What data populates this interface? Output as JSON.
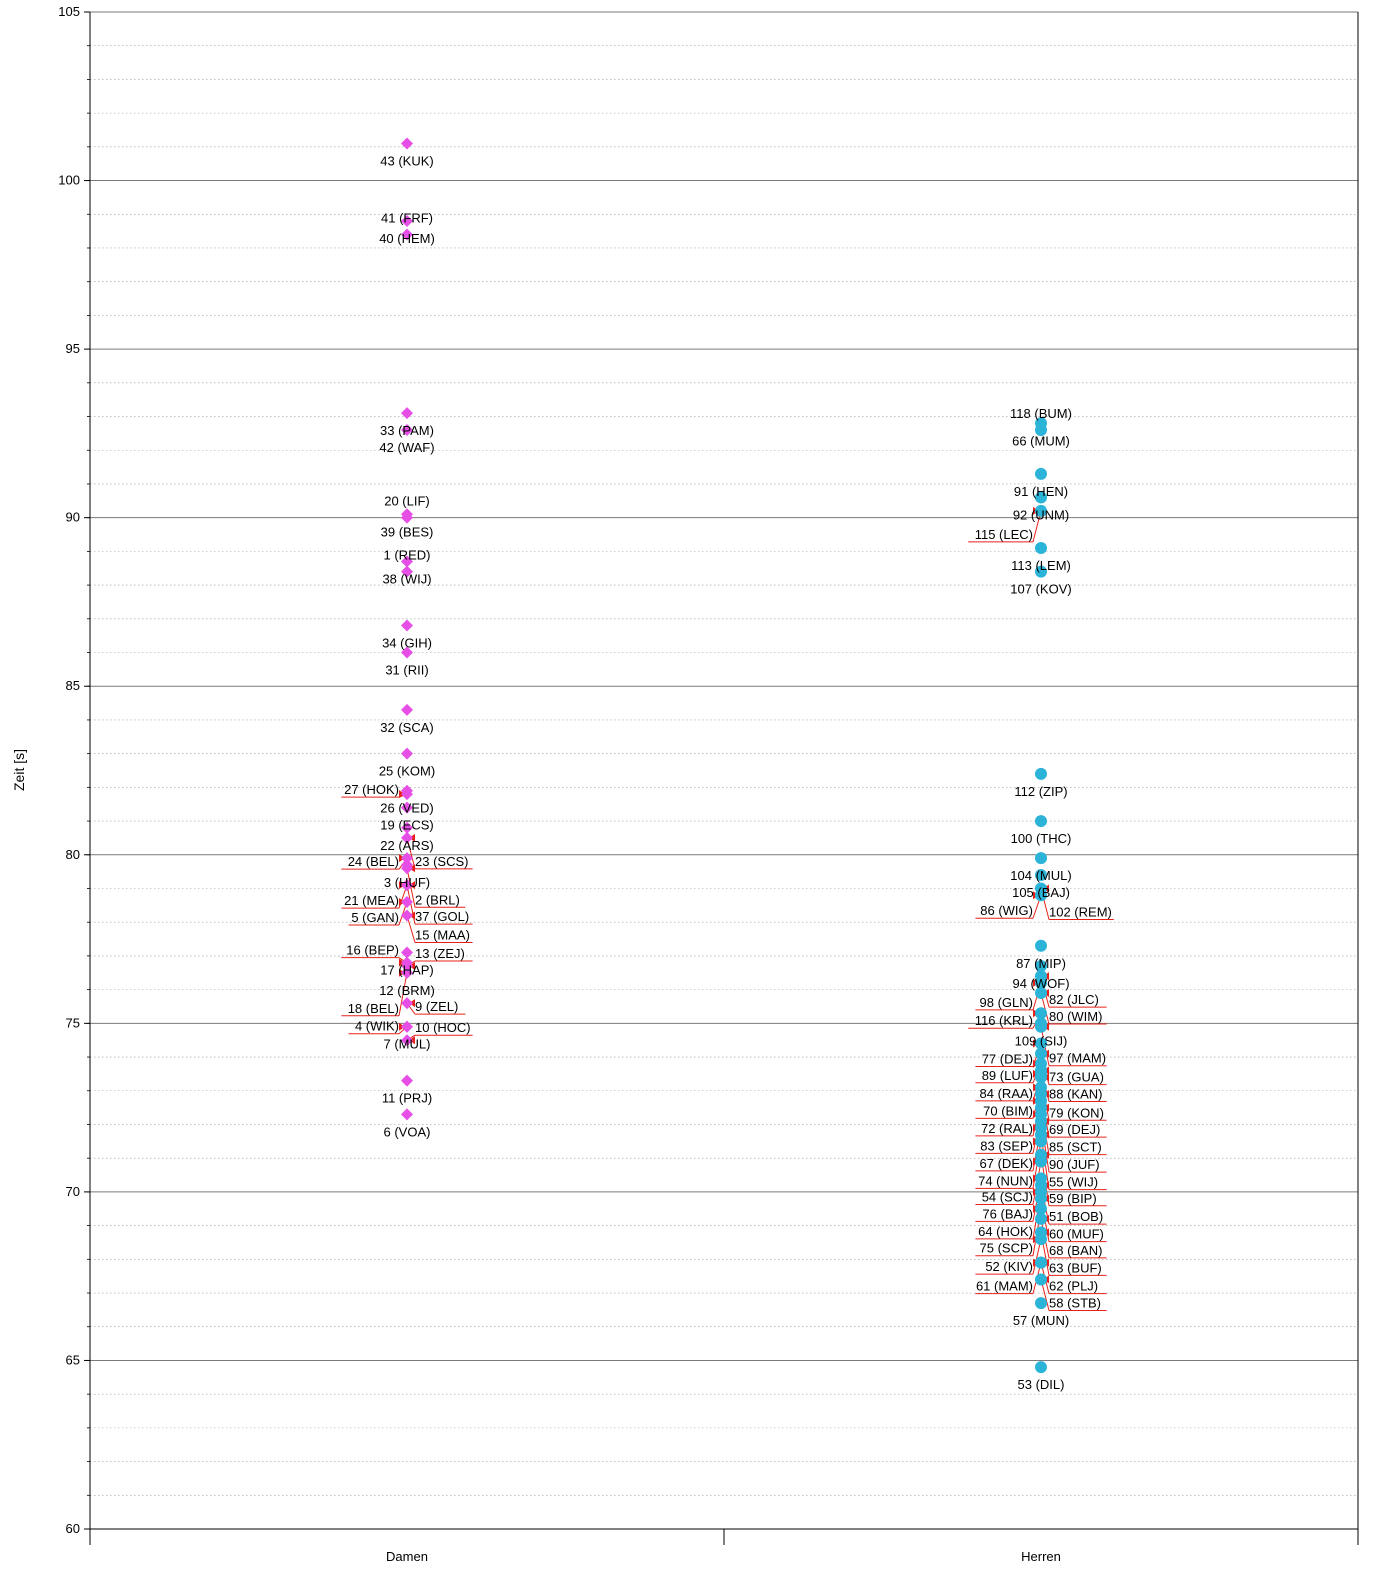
{
  "chart_data": {
    "type": "scatter",
    "ylabel": "Zeit [s]",
    "xlabel": "",
    "ylim": [
      60,
      105
    ],
    "y_major_ticks": [
      60,
      65,
      70,
      75,
      80,
      85,
      90,
      95,
      100,
      105
    ],
    "y_minor_step": 1,
    "grid": "major solid, minor dotted",
    "categories": [
      "Damen",
      "Herren"
    ],
    "series": [
      {
        "category": "Damen",
        "marker": "diamond",
        "color": "#e64fe6",
        "points": [
          {
            "label": "43 (KUK)",
            "y": 101.1
          },
          {
            "label": "40 (HEM)",
            "y": 98.8
          },
          {
            "label": "41 (FRF)",
            "y": 98.4
          },
          {
            "label": "33 (PAM)",
            "y": 93.1
          },
          {
            "label": "42 (WAF)",
            "y": 92.6
          },
          {
            "label": "39 (BES)",
            "y": 90.1
          },
          {
            "label": "20 (LIF)",
            "y": 90.0
          },
          {
            "label": "38 (WIJ)",
            "y": 88.7
          },
          {
            "label": "1 (RED)",
            "y": 88.4
          },
          {
            "label": "34 (GIH)",
            "y": 86.8
          },
          {
            "label": "31 (RII)",
            "y": 86.0
          },
          {
            "label": "32 (SCA)",
            "y": 84.3
          },
          {
            "label": "25 (KOM)",
            "y": 83.0
          },
          {
            "label": "26 (VED)",
            "y": 81.9
          },
          {
            "label": "27 (HOK)",
            "y": 81.8
          },
          {
            "label": "19 (ECS)",
            "y": 81.4
          },
          {
            "label": "22 (ARS)",
            "y": 80.8
          },
          {
            "label": "23 (SCS)",
            "y": 80.5
          },
          {
            "label": "24 (BEL)",
            "y": 79.9
          },
          {
            "label": "3 (HUF)",
            "y": 79.7
          },
          {
            "label": "2 (BRL)",
            "y": 79.6
          },
          {
            "label": "21 (MEA)",
            "y": 79.1
          },
          {
            "label": "37 (GOL)",
            "y": 79.1
          },
          {
            "label": "5 (GAN)",
            "y": 78.6
          },
          {
            "label": "15 (MAA)",
            "y": 78.2
          },
          {
            "label": "17 (HAP)",
            "y": 77.1
          },
          {
            "label": "16 (BEP)",
            "y": 76.8
          },
          {
            "label": "13 (ZEJ)",
            "y": 76.7
          },
          {
            "label": "12 (BRM)",
            "y": 76.5
          },
          {
            "label": "18 (BEL)",
            "y": 76.5
          },
          {
            "label": "9 (ZEL)",
            "y": 75.6
          },
          {
            "label": "7 (MUL)",
            "y": 74.9
          },
          {
            "label": "4 (WIK)",
            "y": 74.9
          },
          {
            "label": "10 (HOC)",
            "y": 74.5
          },
          {
            "label": "11 (PRJ)",
            "y": 73.3
          },
          {
            "label": "6 (VOA)",
            "y": 72.3
          }
        ]
      },
      {
        "category": "Herren",
        "marker": "circle",
        "color": "#2bb4d8",
        "points": [
          {
            "label": "66 (MUM)",
            "y": 92.8
          },
          {
            "label": "118 (BUM)",
            "y": 92.6
          },
          {
            "label": "91 (HEN)",
            "y": 91.3
          },
          {
            "label": "92 (UNM)",
            "y": 90.6
          },
          {
            "label": "115 (LEC)",
            "y": 90.2
          },
          {
            "label": "113 (LEM)",
            "y": 89.1
          },
          {
            "label": "107 (KOV)",
            "y": 88.4
          },
          {
            "label": "112 (ZIP)",
            "y": 82.4
          },
          {
            "label": "100 (THC)",
            "y": 81.0
          },
          {
            "label": "104 (MUL)",
            "y": 79.9
          },
          {
            "label": "105 (BAJ)",
            "y": 79.4
          },
          {
            "label": "102 (REM)",
            "y": 79.0
          },
          {
            "label": "86 (WIG)",
            "y": 78.8
          },
          {
            "label": "87 (MIP)",
            "y": 77.3
          },
          {
            "label": "94 (WOF)",
            "y": 76.7
          },
          {
            "label": "82 (JLC)",
            "y": 76.4
          },
          {
            "label": "98 (GLN)",
            "y": 76.2
          },
          {
            "label": "80 (WIM)",
            "y": 75.9
          },
          {
            "label": "116 (KRL)",
            "y": 75.3
          },
          {
            "label": "109 (SIJ)",
            "y": 75.0
          },
          {
            "label": "97 (MAM)",
            "y": 74.9
          },
          {
            "label": "77 (DEJ)",
            "y": 74.4
          },
          {
            "label": "73 (GUA)",
            "y": 74.1
          },
          {
            "label": "89 (LUF)",
            "y": 73.8
          },
          {
            "label": "88 (KAN)",
            "y": 73.6
          },
          {
            "label": "84 (RAA)",
            "y": 73.5
          },
          {
            "label": "79 (KON)",
            "y": 73.4
          },
          {
            "label": "70 (BIM)",
            "y": 73.1
          },
          {
            "label": "69 (DEJ)",
            "y": 72.9
          },
          {
            "label": "72 (RAL)",
            "y": 72.7
          },
          {
            "label": "85 (SCT)",
            "y": 72.5
          },
          {
            "label": "83 (SEP)",
            "y": 72.3
          },
          {
            "label": "90 (JUF)",
            "y": 72.1
          },
          {
            "label": "67 (DEK)",
            "y": 71.9
          },
          {
            "label": "55 (WIJ)",
            "y": 71.7
          },
          {
            "label": "74 (NUN)",
            "y": 71.5
          },
          {
            "label": "59 (BIP)",
            "y": 71.1
          },
          {
            "label": "54 (SCJ)",
            "y": 70.9
          },
          {
            "label": "76 (BAJ)",
            "y": 70.4
          },
          {
            "label": "51 (BOB)",
            "y": 70.2
          },
          {
            "label": "64 (HOK)",
            "y": 70.0
          },
          {
            "label": "60 (MUF)",
            "y": 69.8
          },
          {
            "label": "75 (SCP)",
            "y": 69.5
          },
          {
            "label": "68 (BAN)",
            "y": 69.2
          },
          {
            "label": "63 (BUF)",
            "y": 68.8
          },
          {
            "label": "52 (KIV)",
            "y": 68.6
          },
          {
            "label": "62 (PLJ)",
            "y": 67.9
          },
          {
            "label": "61 (MAM)",
            "y": 67.9
          },
          {
            "label": "58 (STB)",
            "y": 67.4
          },
          {
            "label": "57 (MUN)",
            "y": 66.7
          },
          {
            "label": "53 (DIL)",
            "y": 64.8
          }
        ]
      }
    ]
  }
}
